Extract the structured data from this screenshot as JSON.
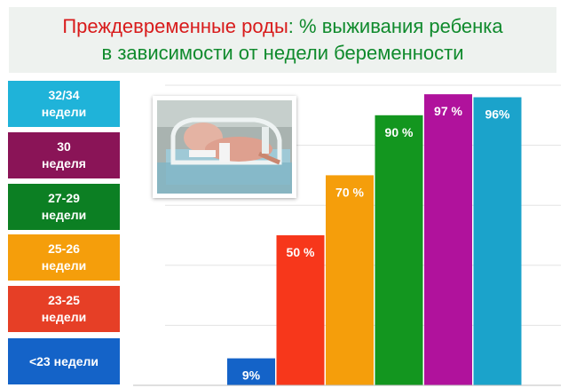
{
  "title": {
    "part1": "Преждевременные роды",
    "part2": ": % выживания ребенка",
    "line2": "в зависимости от недели беременности"
  },
  "legend": [
    {
      "label": "32/34\nнедели",
      "color": "#1fb3d9"
    },
    {
      "label": "30\nнеделя",
      "color": "#8a1457"
    },
    {
      "label": "27-29\nнедели",
      "color": "#0c7f23"
    },
    {
      "label": "25-26\nнедели",
      "color": "#f59e0b"
    },
    {
      "label": "23-25\nнедели",
      "color": "#e63f26"
    },
    {
      "label": "<23  недели",
      "color": "#1463c8"
    }
  ],
  "chart_data": {
    "type": "bar",
    "title": "Преждевременные роды: % выживания ребенка в зависимости от недели беременности",
    "categories": [
      "<23 недели",
      "23-25 недели",
      "25-26 недели",
      "27-29 недели",
      "30 неделя",
      "32/34 недели"
    ],
    "values": [
      9,
      50,
      70,
      90,
      97,
      96
    ],
    "value_labels": [
      "9%",
      "50 %",
      "70 %",
      "90 %",
      "97 %",
      "96%"
    ],
    "colors": [
      "#1463c8",
      "#f7371b",
      "#f59e0b",
      "#13961f",
      "#b0129c",
      "#1ba3cb"
    ],
    "ylim": [
      0,
      100
    ],
    "grid": true,
    "legend_position": "left"
  }
}
